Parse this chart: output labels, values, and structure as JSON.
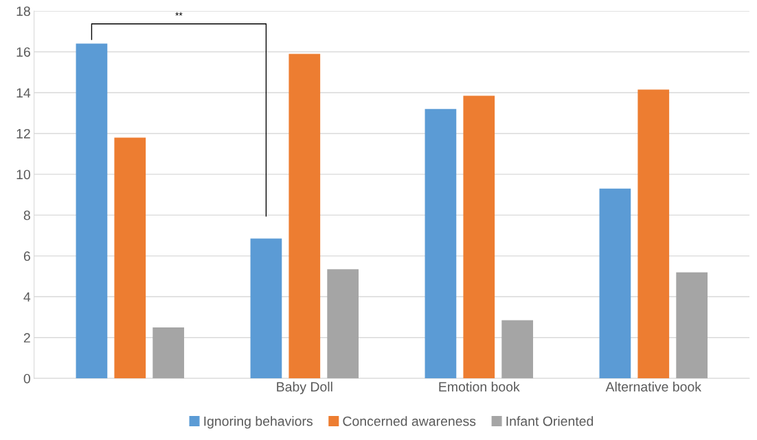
{
  "chart_data": {
    "type": "bar",
    "categories": [
      null,
      "Baby Doll",
      "Emotion book",
      "Alternative book"
    ],
    "series": [
      {
        "name": "Ignoring behaviors",
        "color": "#5b9bd5",
        "values": [
          16.4,
          6.85,
          13.2,
          9.3
        ]
      },
      {
        "name": "Concerned awareness",
        "color": "#ed7d31",
        "values": [
          11.8,
          15.9,
          13.85,
          14.15
        ]
      },
      {
        "name": "Infant Oriented",
        "color": "#a5a5a5",
        "values": [
          2.5,
          5.35,
          2.85,
          5.2
        ]
      }
    ],
    "ylim": [
      0,
      18
    ],
    "yticks": [
      0,
      2,
      4,
      6,
      8,
      10,
      12,
      14,
      16,
      18
    ],
    "grid": "y",
    "legend": "bottom",
    "annotations": [
      "**"
    ]
  }
}
